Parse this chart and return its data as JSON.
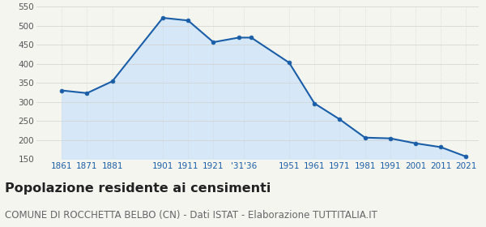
{
  "years": [
    1861,
    1871,
    1881,
    1901,
    1911,
    1921,
    1931,
    1936,
    1951,
    1961,
    1971,
    1981,
    1991,
    2001,
    2011,
    2021
  ],
  "population": [
    330,
    323,
    354,
    521,
    514,
    457,
    469,
    469,
    403,
    296,
    254,
    206,
    204,
    191,
    181,
    156
  ],
  "ylim": [
    150,
    550
  ],
  "yticks": [
    150,
    200,
    250,
    300,
    350,
    400,
    450,
    500,
    550
  ],
  "xlim_left": 1851,
  "xlim_right": 2026,
  "line_color": "#1a5ea8",
  "fill_color": "#d6e8f7",
  "marker_color": "#1a5ea8",
  "grid_color": "#d0d0d0",
  "bg_color": "#f5f5f0",
  "title": "Popolazione residente ai censimenti",
  "subtitle": "COMUNE DI ROCCHETTA BELBO (CN) - Dati ISTAT - Elaborazione TUTTITALIA.IT",
  "title_fontsize": 11.5,
  "subtitle_fontsize": 8.5,
  "xtick_positions": [
    1861,
    1871,
    1881,
    1901,
    1911,
    1921,
    1933,
    1951,
    1961,
    1971,
    1981,
    1991,
    2001,
    2011,
    2021
  ],
  "xtick_labels": [
    "1861",
    "1871",
    "1881",
    "1901",
    "1911",
    "1921",
    "'31'36",
    "1951",
    "1961",
    "1971",
    "1981",
    "1991",
    "2001",
    "2011",
    "2021"
  ]
}
